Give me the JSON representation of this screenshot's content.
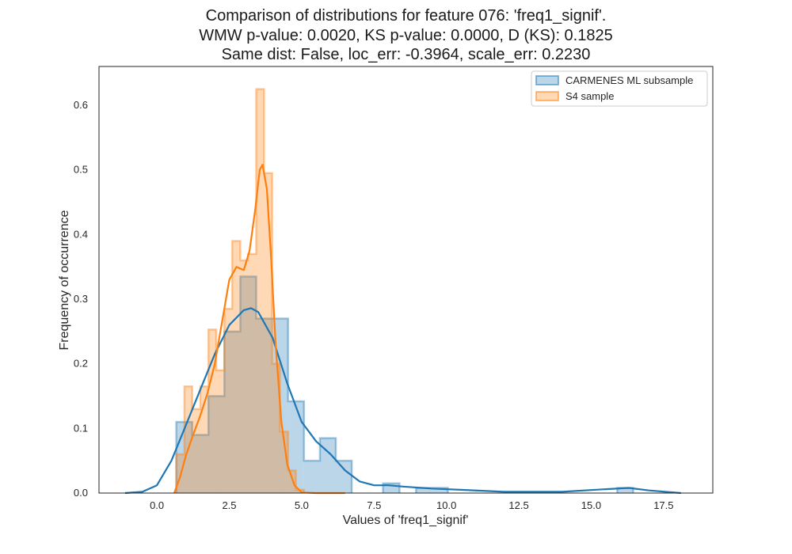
{
  "chart_data": {
    "type": "histogram",
    "title_lines": [
      "Comparison of distributions for feature 076: 'freq1_signif'.",
      "WMW p-value: 0.0020, KS p-value: 0.0000, D (KS): 0.1825",
      "Same dist: False, loc_err: -0.3964, scale_err: 0.2230"
    ],
    "xlabel": "Values of 'freq1_signif'",
    "ylabel": "Frequency of occurrence",
    "xlim": [
      -2.0,
      19.2
    ],
    "ylim": [
      0,
      0.66
    ],
    "xticks": [
      0.0,
      2.5,
      5.0,
      7.5,
      10.0,
      12.5,
      15.0,
      17.5
    ],
    "xtick_labels": [
      "0.0",
      "2.5",
      "5.0",
      "7.5",
      "10.0",
      "12.5",
      "15.0",
      "17.5"
    ],
    "yticks": [
      0.0,
      0.1,
      0.2,
      0.3,
      0.4,
      0.5,
      0.6
    ],
    "ytick_labels": [
      "0.0",
      "0.1",
      "0.2",
      "0.3",
      "0.4",
      "0.5",
      "0.6"
    ],
    "grid": false,
    "legend_position": "top-right",
    "series": [
      {
        "name": "CARMENES ML subsample",
        "color": "#1f77b4",
        "histogram": [
          {
            "x0": 0.67,
            "x1": 1.22,
            "y": 0.11
          },
          {
            "x0": 1.22,
            "x1": 1.78,
            "y": 0.09
          },
          {
            "x0": 1.78,
            "x1": 2.33,
            "y": 0.15
          },
          {
            "x0": 2.33,
            "x1": 2.88,
            "y": 0.25
          },
          {
            "x0": 2.88,
            "x1": 3.43,
            "y": 0.335
          },
          {
            "x0": 3.43,
            "x1": 3.98,
            "y": 0.27
          },
          {
            "x0": 3.98,
            "x1": 4.53,
            "y": 0.27
          },
          {
            "x0": 4.53,
            "x1": 5.08,
            "y": 0.142
          },
          {
            "x0": 5.08,
            "x1": 5.63,
            "y": 0.05
          },
          {
            "x0": 5.63,
            "x1": 6.18,
            "y": 0.085
          },
          {
            "x0": 6.18,
            "x1": 6.73,
            "y": 0.05
          },
          {
            "x0": 7.81,
            "x1": 8.38,
            "y": 0.015
          },
          {
            "x0": 8.95,
            "x1": 9.5,
            "y": 0.008
          },
          {
            "x0": 9.5,
            "x1": 10.05,
            "y": 0.008
          },
          {
            "x0": 15.9,
            "x1": 16.45,
            "y": 0.008
          }
        ],
        "kde": [
          [
            -1.1,
            0.0
          ],
          [
            -0.5,
            0.002
          ],
          [
            0.0,
            0.012
          ],
          [
            0.5,
            0.05
          ],
          [
            1.0,
            0.105
          ],
          [
            1.5,
            0.16
          ],
          [
            2.0,
            0.215
          ],
          [
            2.5,
            0.26
          ],
          [
            3.0,
            0.283
          ],
          [
            3.25,
            0.286
          ],
          [
            3.5,
            0.28
          ],
          [
            4.0,
            0.24
          ],
          [
            4.5,
            0.17
          ],
          [
            5.0,
            0.11
          ],
          [
            5.5,
            0.08
          ],
          [
            6.0,
            0.06
          ],
          [
            6.5,
            0.035
          ],
          [
            7.0,
            0.018
          ],
          [
            7.5,
            0.012
          ],
          [
            8.0,
            0.012
          ],
          [
            8.5,
            0.01
          ],
          [
            9.5,
            0.007
          ],
          [
            10.5,
            0.005
          ],
          [
            12.0,
            0.002
          ],
          [
            14.0,
            0.002
          ],
          [
            15.5,
            0.006
          ],
          [
            16.3,
            0.008
          ],
          [
            17.0,
            0.004
          ],
          [
            18.1,
            0.0
          ]
        ]
      },
      {
        "name": "S4 sample",
        "color": "#ff7f0e",
        "histogram": [
          {
            "x0": 0.67,
            "x1": 0.95,
            "y": 0.06
          },
          {
            "x0": 0.95,
            "x1": 1.22,
            "y": 0.165
          },
          {
            "x0": 1.22,
            "x1": 1.5,
            "y": 0.13
          },
          {
            "x0": 1.5,
            "x1": 1.78,
            "y": 0.165
          },
          {
            "x0": 1.78,
            "x1": 2.05,
            "y": 0.253
          },
          {
            "x0": 2.05,
            "x1": 2.33,
            "y": 0.19
          },
          {
            "x0": 2.33,
            "x1": 2.6,
            "y": 0.285
          },
          {
            "x0": 2.6,
            "x1": 2.88,
            "y": 0.39
          },
          {
            "x0": 2.88,
            "x1": 3.15,
            "y": 0.36
          },
          {
            "x0": 3.15,
            "x1": 3.43,
            "y": 0.37
          },
          {
            "x0": 3.43,
            "x1": 3.7,
            "y": 0.625
          },
          {
            "x0": 3.7,
            "x1": 3.98,
            "y": 0.495
          },
          {
            "x0": 3.98,
            "x1": 4.25,
            "y": 0.2
          },
          {
            "x0": 4.25,
            "x1": 4.53,
            "y": 0.095
          },
          {
            "x0": 4.53,
            "x1": 4.8,
            "y": 0.035
          },
          {
            "x0": 4.8,
            "x1": 5.08,
            "y": 0.005
          }
        ],
        "kde": [
          [
            0.6,
            0.0
          ],
          [
            0.8,
            0.025
          ],
          [
            1.0,
            0.058
          ],
          [
            1.25,
            0.09
          ],
          [
            1.5,
            0.12
          ],
          [
            1.75,
            0.155
          ],
          [
            2.0,
            0.2
          ],
          [
            2.25,
            0.265
          ],
          [
            2.5,
            0.33
          ],
          [
            2.75,
            0.35
          ],
          [
            3.0,
            0.345
          ],
          [
            3.2,
            0.375
          ],
          [
            3.4,
            0.44
          ],
          [
            3.55,
            0.5
          ],
          [
            3.65,
            0.508
          ],
          [
            3.8,
            0.47
          ],
          [
            3.95,
            0.36
          ],
          [
            4.1,
            0.23
          ],
          [
            4.3,
            0.11
          ],
          [
            4.5,
            0.045
          ],
          [
            4.75,
            0.012
          ],
          [
            5.0,
            0.001
          ],
          [
            5.5,
            0.0
          ],
          [
            6.0,
            0.0
          ],
          [
            6.5,
            0.0
          ]
        ]
      }
    ]
  }
}
